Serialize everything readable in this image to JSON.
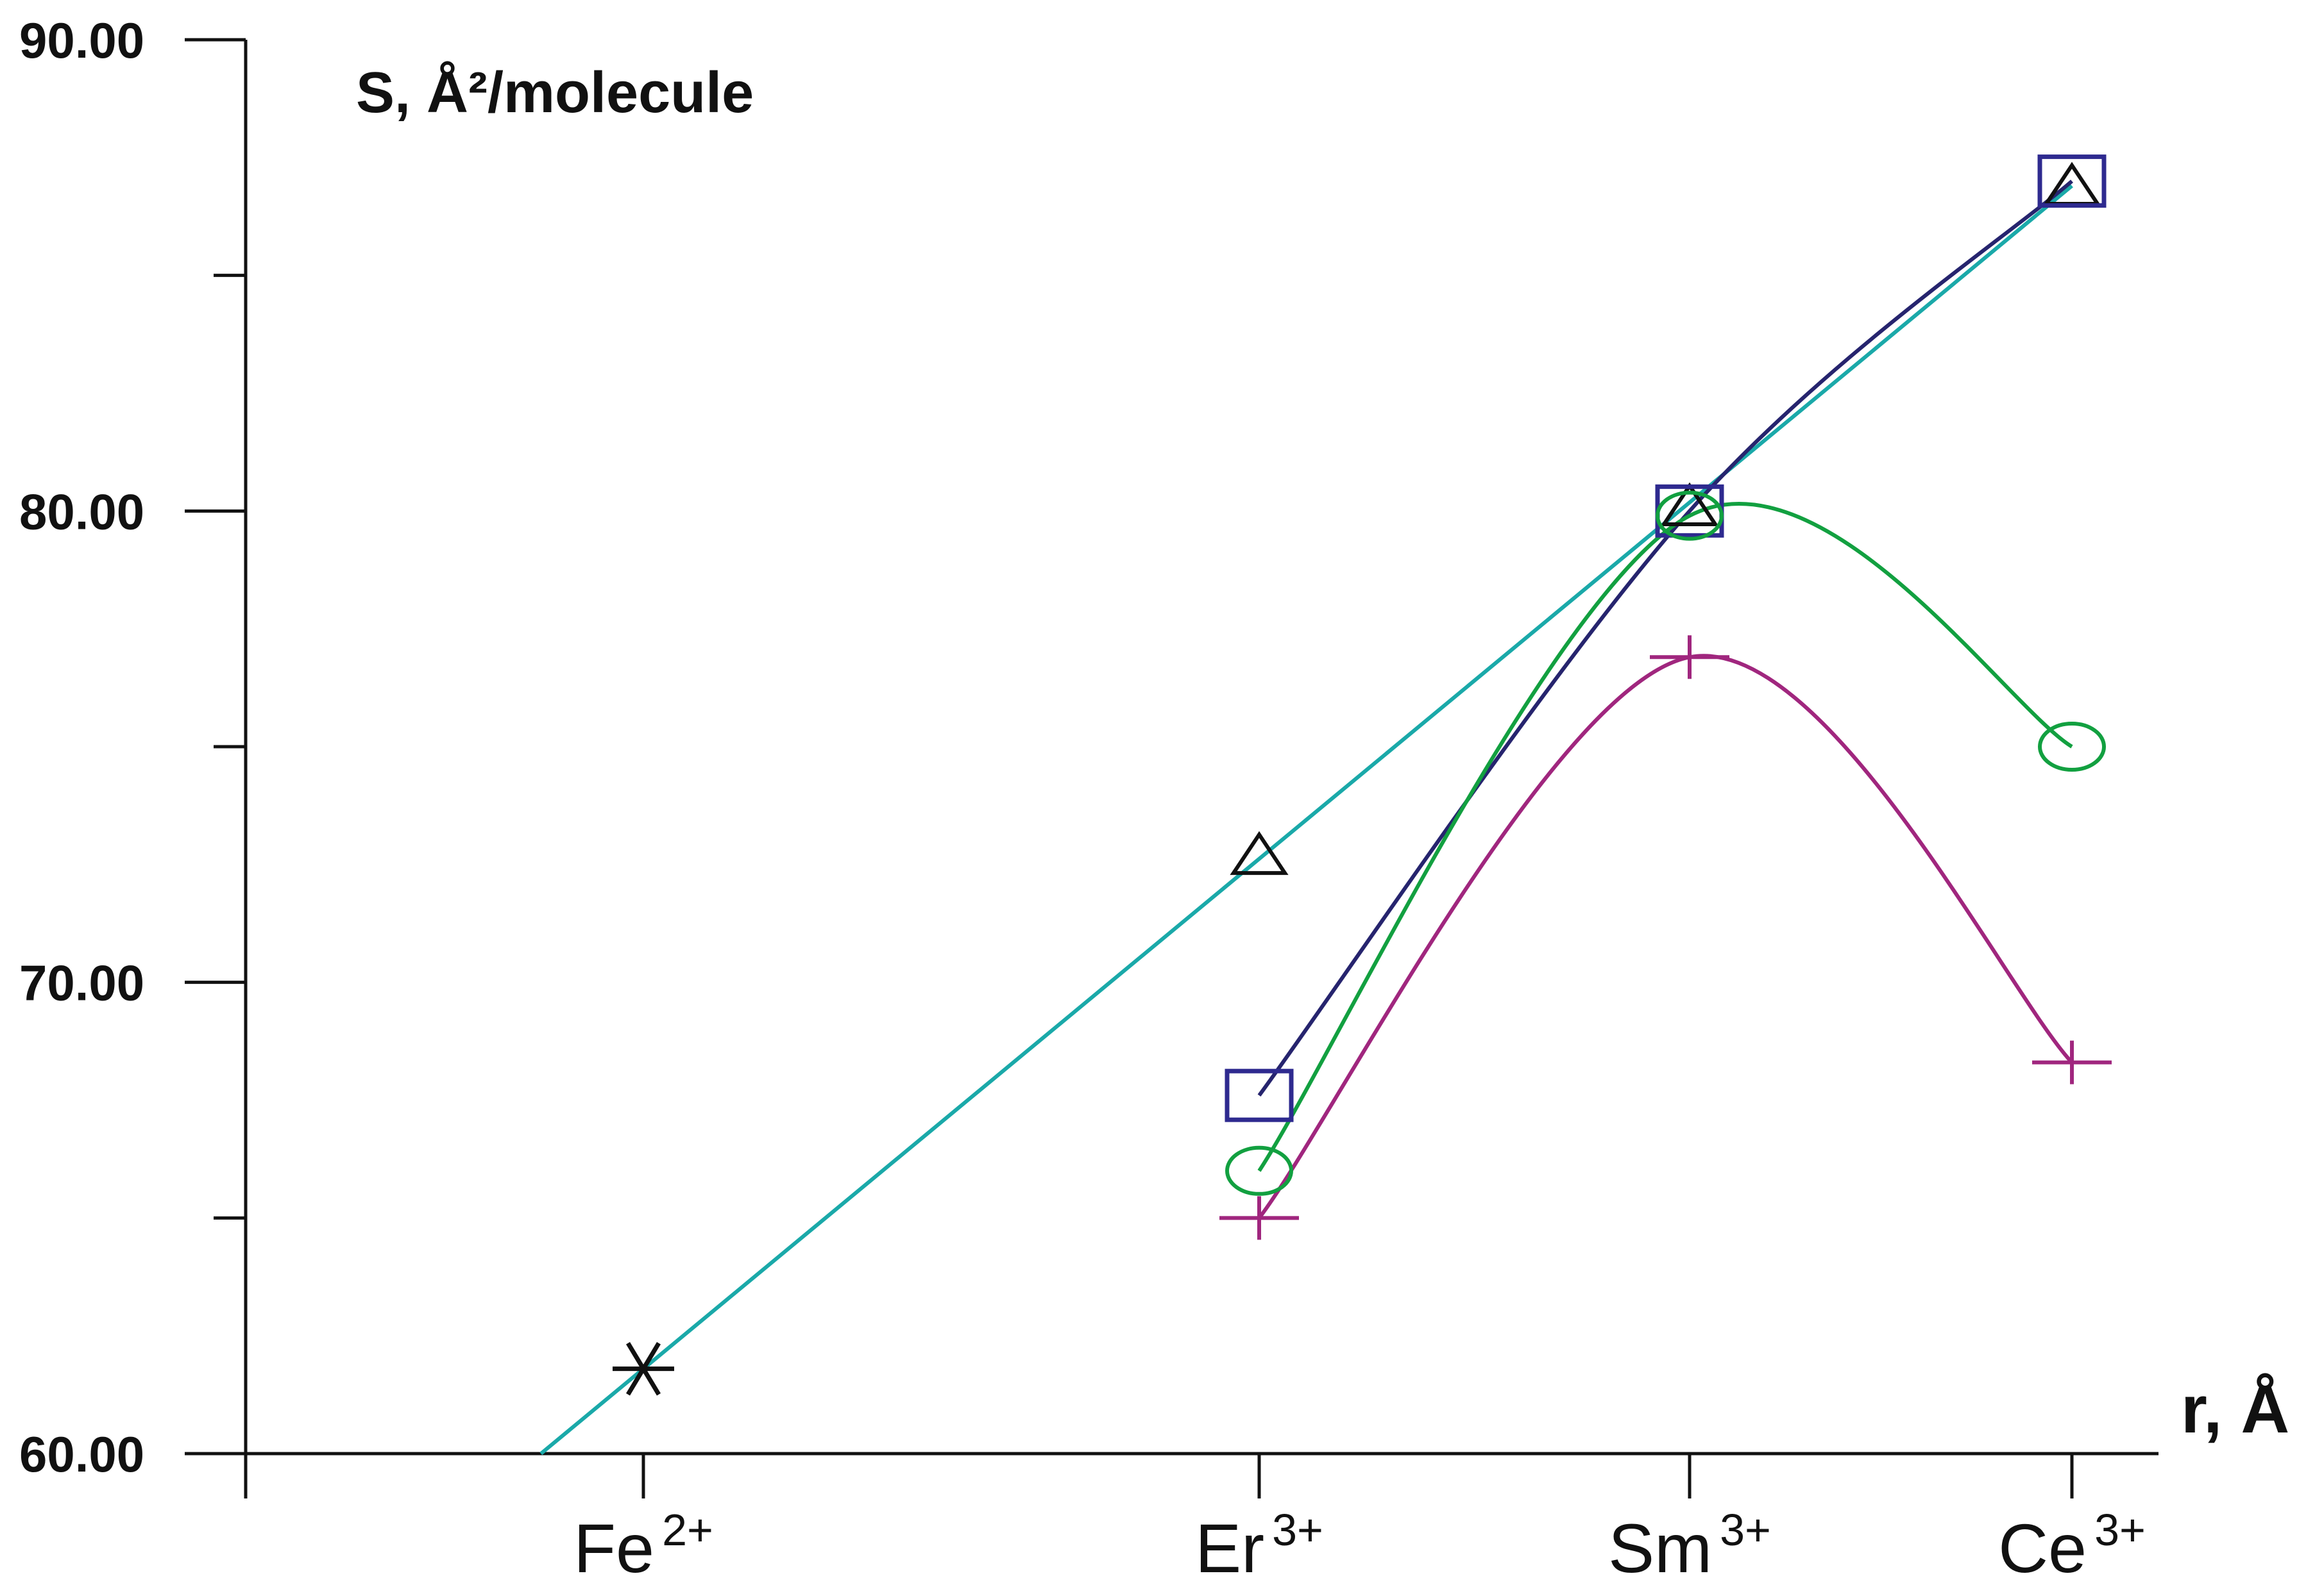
{
  "chart_data": {
    "type": "line",
    "y_axis_title": "S, Å²/molecule",
    "x_axis_title": "r, Å",
    "ylim": [
      60,
      90
    ],
    "y_ticks": [
      {
        "value": 60,
        "label": "60.00"
      },
      {
        "value": 70,
        "label": "70.00"
      },
      {
        "value": 80,
        "label": "80.00"
      },
      {
        "value": 90,
        "label": "90.00"
      }
    ],
    "y_minor_ticks": [
      65,
      75,
      85
    ],
    "categories": [
      {
        "key": "fe",
        "base": "Fe",
        "sup": "2+"
      },
      {
        "key": "er",
        "base": "Er",
        "sup": "3+"
      },
      {
        "key": "sm",
        "base": "Sm",
        "sup": "3+"
      },
      {
        "key": "ce",
        "base": "Ce",
        "sup": "3+"
      }
    ],
    "series": [
      {
        "id": "triangle",
        "marker": "triangle",
        "color": "#1aa9a9",
        "marker_color": "#111111",
        "points": [
          {
            "x": "fe",
            "y": 61.8
          },
          {
            "x": "er",
            "y": 72.7
          },
          {
            "x": "sm",
            "y": 80.1
          },
          {
            "x": "ce",
            "y": 86.9
          }
        ]
      },
      {
        "id": "square",
        "marker": "square",
        "color": "#26246e",
        "marker_color": "#2e2a8f",
        "points": [
          {
            "x": "er",
            "y": 67.6
          },
          {
            "x": "sm",
            "y": 80.0
          },
          {
            "x": "ce",
            "y": 87.0
          }
        ]
      },
      {
        "id": "circle",
        "marker": "circle",
        "color": "#12a040",
        "marker_color": "#12a040",
        "points": [
          {
            "x": "er",
            "y": 66.0
          },
          {
            "x": "sm",
            "y": 79.9
          },
          {
            "x": "ce",
            "y": 75.0
          }
        ]
      },
      {
        "id": "plus",
        "marker": "plus",
        "color": "#a0267e",
        "marker_color": "#a0267e",
        "points": [
          {
            "x": "er",
            "y": 65.0
          },
          {
            "x": "sm",
            "y": 76.9
          },
          {
            "x": "ce",
            "y": 68.3
          }
        ]
      }
    ],
    "star_point": {
      "x": "fe",
      "y": 61.8,
      "color": "#111111"
    }
  }
}
